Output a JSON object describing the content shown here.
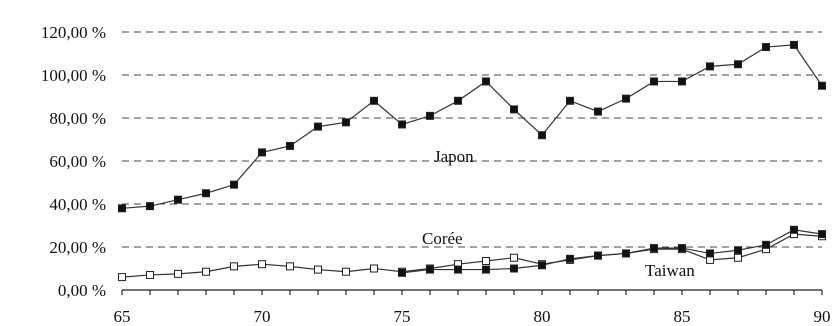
{
  "chart_data": {
    "type": "line",
    "x": [
      65,
      66,
      67,
      68,
      69,
      70,
      71,
      72,
      73,
      74,
      75,
      76,
      77,
      78,
      79,
      80,
      81,
      82,
      83,
      84,
      85,
      86,
      87,
      88,
      89,
      90
    ],
    "xlim": [
      65,
      90
    ],
    "x_ticks": [
      "65",
      "70",
      "75",
      "80",
      "85",
      "90"
    ],
    "ylim": [
      0,
      120
    ],
    "y_ticks": [
      "0,00 %",
      "20,00 %",
      "40,00 %",
      "60,00 %",
      "80,00 %",
      "100,00 %",
      "120,00 %"
    ],
    "grid": true,
    "series": [
      {
        "name": "Japon",
        "marker": "filled-square",
        "color": "#333333",
        "values": [
          38,
          39,
          42,
          45,
          49,
          64,
          67,
          76,
          78,
          88,
          77,
          81,
          88,
          97,
          84,
          72,
          88,
          83,
          89,
          97,
          97,
          104,
          105,
          113,
          114,
          95
        ]
      },
      {
        "name": "Corée",
        "marker": "open-square",
        "color": "#333333",
        "values": [
          6,
          7,
          7.5,
          8.5,
          11,
          12,
          11,
          9.5,
          8.5,
          10,
          8.5,
          10,
          12,
          13.5,
          15,
          12,
          14,
          16,
          17,
          19,
          19,
          14,
          15,
          19,
          26,
          25
        ]
      },
      {
        "name": "Taiwan",
        "marker": "filled-square",
        "color": "#333333",
        "values": [
          null,
          null,
          null,
          null,
          null,
          null,
          null,
          null,
          null,
          null,
          8,
          9.5,
          9.5,
          9.5,
          10,
          11.5,
          14.5,
          16,
          17,
          19.5,
          19.5,
          17,
          18.5,
          21,
          28,
          26
        ]
      }
    ]
  }
}
